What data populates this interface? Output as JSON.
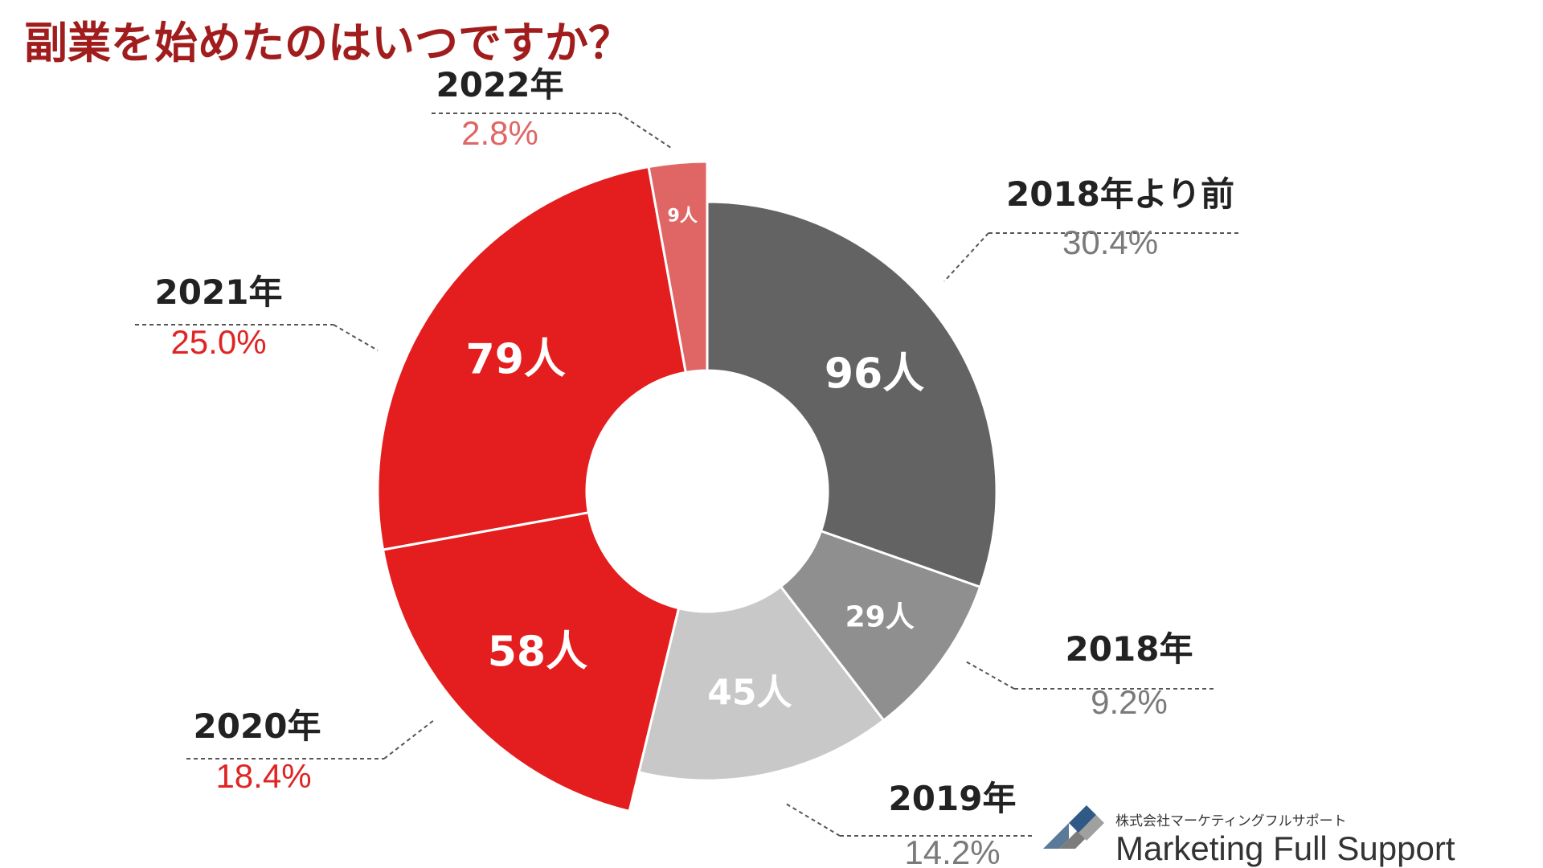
{
  "chart_data": {
    "type": "pie",
    "title": "副業を始めたのはいつですか？",
    "categories": [
      "2018年より前",
      "2018年",
      "2019年",
      "2020年",
      "2021年",
      "2022年"
    ],
    "counts": [
      96,
      29,
      45,
      58,
      79,
      9
    ],
    "count_labels": [
      "96人",
      "29人",
      "45人",
      "58人",
      "79人",
      "9人"
    ],
    "percentages": [
      30.4,
      9.2,
      14.2,
      18.4,
      25.0,
      2.8
    ],
    "percentage_labels": [
      "30.4%",
      "9.2%",
      "14.2%",
      "18.4%",
      "25.0%",
      "2.8%"
    ],
    "colors": [
      "#636363",
      "#8f8f8f",
      "#c8c8c8",
      "#e41e1e",
      "#e41e1e",
      "#e06666"
    ],
    "percent_text_colors": [
      "#7a7a7a",
      "#7a7a7a",
      "#7a7a7a",
      "#e02424",
      "#e02424",
      "#e06666"
    ],
    "exploded": [
      false,
      false,
      false,
      true,
      true,
      true
    ],
    "donut": true
  },
  "title_color": "#a11c1c",
  "logo": {
    "company_jp": "株式会社マーケティングフルサポート",
    "company_en": "Marketing Full Support"
  }
}
